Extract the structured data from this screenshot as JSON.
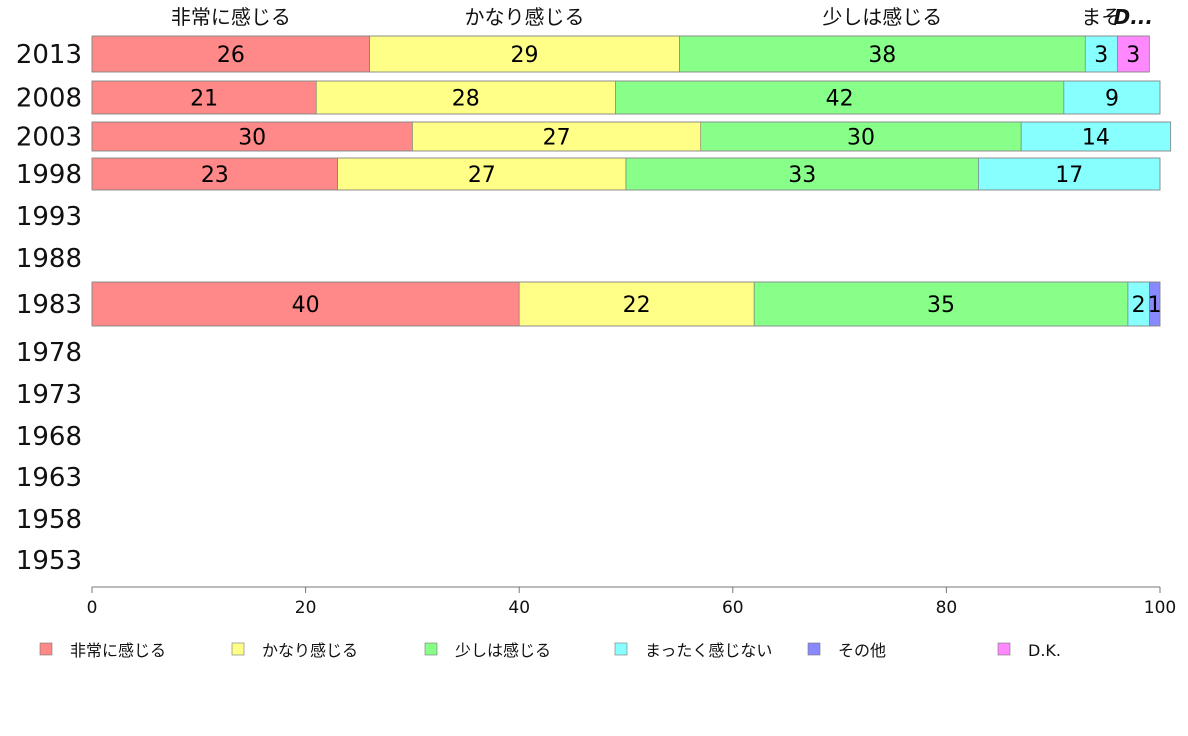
{
  "chart_data": {
    "type": "bar",
    "orientation": "horizontal",
    "stacked": true,
    "categories": [
      "2013",
      "2008",
      "2003",
      "1998",
      "1993",
      "1988",
      "1983",
      "1978",
      "1973",
      "1968",
      "1963",
      "1958",
      "1953"
    ],
    "series": [
      {
        "name": "非常に感じる",
        "color": "#ff8888",
        "values": [
          26,
          21,
          30,
          23,
          null,
          null,
          40,
          null,
          null,
          null,
          null,
          null,
          null
        ]
      },
      {
        "name": "かなり感じる",
        "color": "#ffff88",
        "values": [
          29,
          28,
          27,
          27,
          null,
          null,
          22,
          null,
          null,
          null,
          null,
          null,
          null
        ]
      },
      {
        "name": "少しは感じる",
        "color": "#88ff88",
        "values": [
          38,
          42,
          30,
          33,
          null,
          null,
          35,
          null,
          null,
          null,
          null,
          null,
          null
        ]
      },
      {
        "name": "まったく感じない",
        "color": "#88ffff",
        "values": [
          3,
          9,
          14,
          17,
          null,
          null,
          2,
          null,
          null,
          null,
          null,
          null,
          null
        ]
      },
      {
        "name": "その他",
        "color": "#8888ff",
        "values": [
          null,
          null,
          null,
          null,
          null,
          null,
          1,
          null,
          null,
          null,
          null,
          null,
          null
        ]
      },
      {
        "name": "D.K.",
        "color": "#ff88ff",
        "values": [
          3,
          null,
          null,
          null,
          null,
          null,
          null,
          null,
          null,
          null,
          null,
          null,
          null
        ]
      }
    ],
    "top_labels": [
      "非常に感じる",
      "かなり感じる",
      "少しは感じる",
      "まそ",
      "D..."
    ],
    "xlim": [
      0,
      100
    ],
    "xticks": [
      "0",
      "20",
      "40",
      "60",
      "80",
      "100"
    ],
    "xlabel": "",
    "ylabel": "",
    "title": "",
    "grid": false,
    "legend_position": "bottom"
  }
}
